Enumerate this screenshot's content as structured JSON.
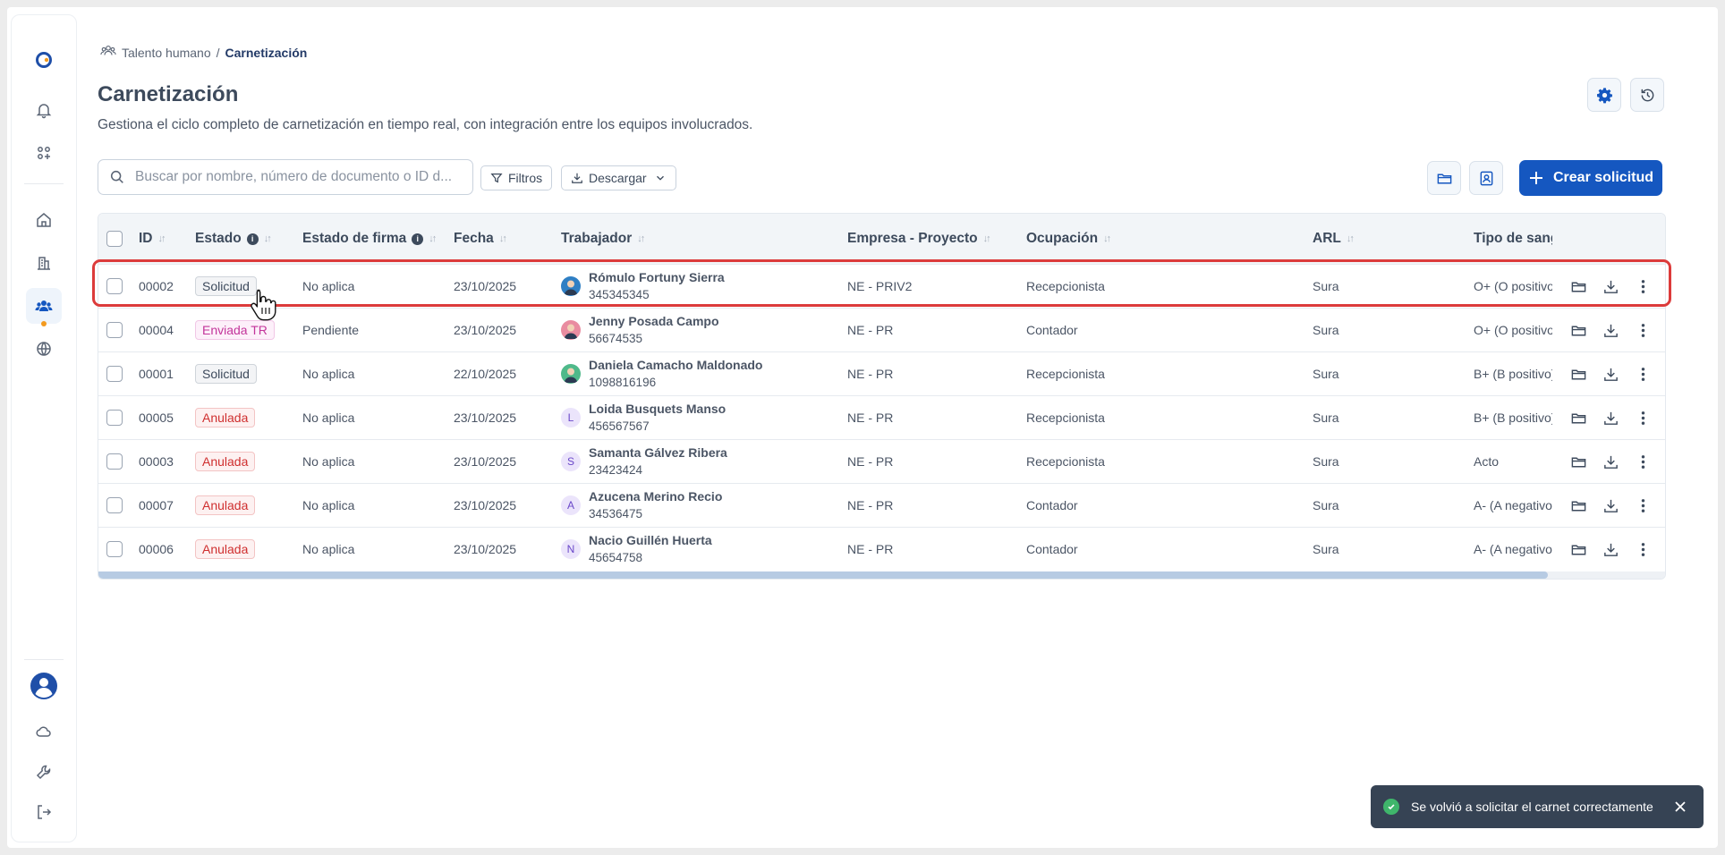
{
  "breadcrumb": {
    "parent": "Talento humano",
    "separator": "/",
    "current": "Carnetización"
  },
  "page": {
    "title": "Carnetización",
    "subtitle": "Gestiona el ciclo completo de carnetización en tiempo real, con integración entre los equipos involucrados."
  },
  "toolbar": {
    "search_placeholder": "Buscar por nombre, número de documento o ID d...",
    "filters_label": "Filtros",
    "download_label": "Descargar",
    "create_label": "Crear solicitud"
  },
  "table": {
    "columns": [
      "ID",
      "Estado",
      "Estado de firma",
      "Fecha",
      "Trabajador",
      "Empresa - Proyecto",
      "Ocupación",
      "ARL",
      "Tipo de sangr"
    ],
    "rows": [
      {
        "id": "00002",
        "estado": "Solicitud",
        "estado_type": "solicitud",
        "firma": "No aplica",
        "fecha": "23/10/2025",
        "nombre": "Rómulo Fortuny Sierra",
        "documento": "345345345",
        "avatar": "photo",
        "avatar_color": "#2f7fc4",
        "empresa": "NE - PRIV2",
        "ocupacion": "Recepcionista",
        "arl": "Sura",
        "sangre": "O+ (O positivo)"
      },
      {
        "id": "00004",
        "estado": "Enviada TR",
        "estado_type": "enviada",
        "firma": "Pendiente",
        "fecha": "23/10/2025",
        "nombre": "Jenny Posada Campo",
        "documento": "56674535",
        "avatar": "photo",
        "avatar_color": "#e98ca0",
        "empresa": "NE - PR",
        "ocupacion": "Contador",
        "arl": "Sura",
        "sangre": "O+ (O positivo)"
      },
      {
        "id": "00001",
        "estado": "Solicitud",
        "estado_type": "solicitud",
        "firma": "No aplica",
        "fecha": "22/10/2025",
        "nombre": "Daniela Camacho Maldonado",
        "documento": "1098816196",
        "avatar": "photo",
        "avatar_color": "#4fb98a",
        "empresa": "NE - PR",
        "ocupacion": "Recepcionista",
        "arl": "Sura",
        "sangre": "B+ (B positivo)"
      },
      {
        "id": "00005",
        "estado": "Anulada",
        "estado_type": "anulada",
        "firma": "No aplica",
        "fecha": "23/10/2025",
        "nombre": "Loida Busquets Manso",
        "documento": "456567567",
        "avatar": "L",
        "empresa": "NE - PR",
        "ocupacion": "Recepcionista",
        "arl": "Sura",
        "sangre": "B+ (B positivo)"
      },
      {
        "id": "00003",
        "estado": "Anulada",
        "estado_type": "anulada",
        "firma": "No aplica",
        "fecha": "23/10/2025",
        "nombre": "Samanta Gálvez Ribera",
        "documento": "23423424",
        "avatar": "S",
        "empresa": "NE - PR",
        "ocupacion": "Recepcionista",
        "arl": "Sura",
        "sangre": "Acto"
      },
      {
        "id": "00007",
        "estado": "Anulada",
        "estado_type": "anulada",
        "firma": "No aplica",
        "fecha": "23/10/2025",
        "nombre": "Azucena Merino Recio",
        "documento": "34536475",
        "avatar": "A",
        "empresa": "NE - PR",
        "ocupacion": "Contador",
        "arl": "Sura",
        "sangre": "A- (A negativo)"
      },
      {
        "id": "00006",
        "estado": "Anulada",
        "estado_type": "anulada",
        "firma": "No aplica",
        "fecha": "23/10/2025",
        "nombre": "Nacio Guillén Huerta",
        "documento": "45654758",
        "avatar": "N",
        "empresa": "NE - PR",
        "ocupacion": "Contador",
        "arl": "Sura",
        "sangre": "A- (A negativo)"
      }
    ]
  },
  "toast": {
    "message": "Se volvió a solicitar el carnet correctamente",
    "status_color": "#3fb66b"
  },
  "colors": {
    "primary": "#1557c0",
    "highlight": "#dc3b3b",
    "accent_dot": "#f39a1f"
  },
  "icons": {
    "sidebar": [
      "logo-icon",
      "bell-icon",
      "apps-icon",
      "home-icon",
      "building-icon",
      "users-icon",
      "globe-icon",
      "avatar-icon",
      "cloud-icon",
      "wrench-icon",
      "logout-icon"
    ],
    "header": [
      "gear-icon",
      "history-icon"
    ],
    "row_actions": [
      "folder-icon",
      "download-icon",
      "kebab-menu-icon"
    ]
  }
}
